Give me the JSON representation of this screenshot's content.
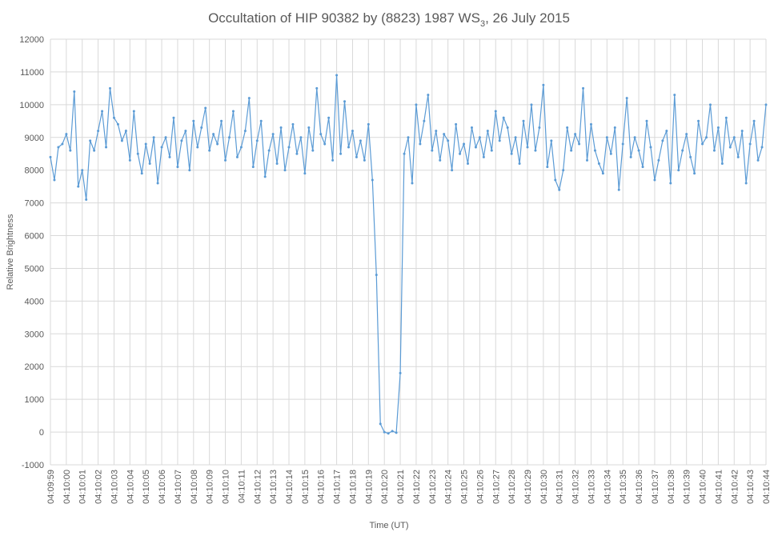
{
  "chart_data": {
    "type": "line",
    "title": "Occultation of HIP 90382 by (8823) 1987 WS",
    "title_subscript": "3",
    "title_suffix": ", 26 July 2015",
    "x_label": "Time (UT)",
    "y_label": "Relative Brightness",
    "color": "#5b9bd5",
    "grid": true,
    "ylim": [
      -1000,
      12000
    ],
    "yticks": [
      -1000,
      0,
      1000,
      2000,
      3000,
      4000,
      5000,
      6000,
      7000,
      8000,
      9000,
      10000,
      11000,
      12000
    ],
    "categories": [
      "04:09:59",
      null,
      null,
      null,
      "04:10:00",
      null,
      null,
      null,
      "04:10:01",
      null,
      null,
      null,
      "04:10:02",
      null,
      null,
      null,
      "04:10:03",
      null,
      null,
      null,
      "04:10:04",
      null,
      null,
      null,
      "04:10:05",
      null,
      null,
      null,
      "04:10:06",
      null,
      null,
      null,
      "04:10:07",
      null,
      null,
      null,
      "04:10:08",
      null,
      null,
      null,
      "04:10:09",
      null,
      null,
      null,
      "04:10:10",
      null,
      null,
      null,
      "04:10:11",
      null,
      null,
      null,
      "04:10:12",
      null,
      null,
      null,
      "04:10:13",
      null,
      null,
      null,
      "04:10:14",
      null,
      null,
      null,
      "04:10:15",
      null,
      null,
      null,
      "04:10:16",
      null,
      null,
      null,
      "04:10:17",
      null,
      null,
      null,
      "04:10:18",
      null,
      null,
      null,
      "04:10:19",
      null,
      null,
      null,
      "04:10:20",
      null,
      null,
      null,
      "04:10:21",
      null,
      null,
      null,
      "04:10:22",
      null,
      null,
      null,
      "04:10:23",
      null,
      null,
      null,
      "04:10:24",
      null,
      null,
      null,
      "04:10:25",
      null,
      null,
      null,
      "04:10:26",
      null,
      null,
      null,
      "04:10:27",
      null,
      null,
      null,
      "04:10:28",
      null,
      null,
      null,
      "04:10:29",
      null,
      null,
      null,
      "04:10:30",
      null,
      null,
      null,
      "04:10:31",
      null,
      null,
      null,
      "04:10:32",
      null,
      null,
      null,
      "04:10:33",
      null,
      null,
      null,
      "04:10:34",
      null,
      null,
      null,
      "04:10:35",
      null,
      null,
      null,
      "04:10:36",
      null,
      null,
      null,
      "04:10:37",
      null,
      null,
      null,
      "04:10:38",
      null,
      null,
      null,
      "04:10:39",
      null,
      null,
      null,
      "04:10:40",
      null,
      null,
      null,
      "04:10:41",
      null,
      null,
      null,
      "04:10:42",
      null,
      null,
      null,
      "04:10:43",
      null,
      null,
      null,
      "04:10:44"
    ],
    "values": [
      8400,
      7700,
      8700,
      8800,
      9100,
      8600,
      10400,
      7500,
      8000,
      7100,
      8900,
      8600,
      9200,
      9800,
      8700,
      10500,
      9600,
      9400,
      8900,
      9200,
      8300,
      9800,
      8500,
      7900,
      8800,
      8200,
      9000,
      7600,
      8700,
      9000,
      8400,
      9600,
      8100,
      8900,
      9200,
      8000,
      9500,
      8700,
      9300,
      9900,
      8600,
      9100,
      8800,
      9500,
      8300,
      9000,
      9800,
      8400,
      8700,
      9200,
      10200,
      8100,
      8900,
      9500,
      7800,
      8600,
      9100,
      8200,
      9300,
      8000,
      8700,
      9400,
      8500,
      9000,
      7900,
      9300,
      8600,
      10500,
      9100,
      8800,
      9600,
      8300,
      10900,
      8500,
      10100,
      8700,
      9200,
      8400,
      8900,
      8300,
      9400,
      7700,
      4800,
      250,
      0,
      -40,
      30,
      -20,
      1800,
      8500,
      9000,
      7600,
      10000,
      8800,
      9500,
      10300,
      8600,
      9200,
      8300,
      9100,
      8900,
      8000,
      9400,
      8500,
      8800,
      8200,
      9300,
      8700,
      9000,
      8400,
      9200,
      8600,
      9800,
      8900,
      9600,
      9300,
      8500,
      9000,
      8200,
      9500,
      8700,
      10000,
      8600,
      9300,
      10600,
      8100,
      8900,
      7700,
      7400,
      8000,
      9300,
      8600,
      9100,
      8800,
      10500,
      8300,
      9400,
      8600,
      8200,
      7900,
      9000,
      8500,
      9300,
      7400,
      8800,
      10200,
      8400,
      9000,
      8600,
      8100,
      9500,
      8700,
      7700,
      8300,
      8900,
      9200,
      7600,
      10300,
      8000,
      8600,
      9100,
      8400,
      7900,
      9500,
      8800,
      9000,
      10000,
      8600,
      9300,
      8200,
      9600,
      8700,
      9000,
      8400,
      9200,
      7600,
      8800,
      9500,
      8300,
      8700,
      10000
    ]
  }
}
